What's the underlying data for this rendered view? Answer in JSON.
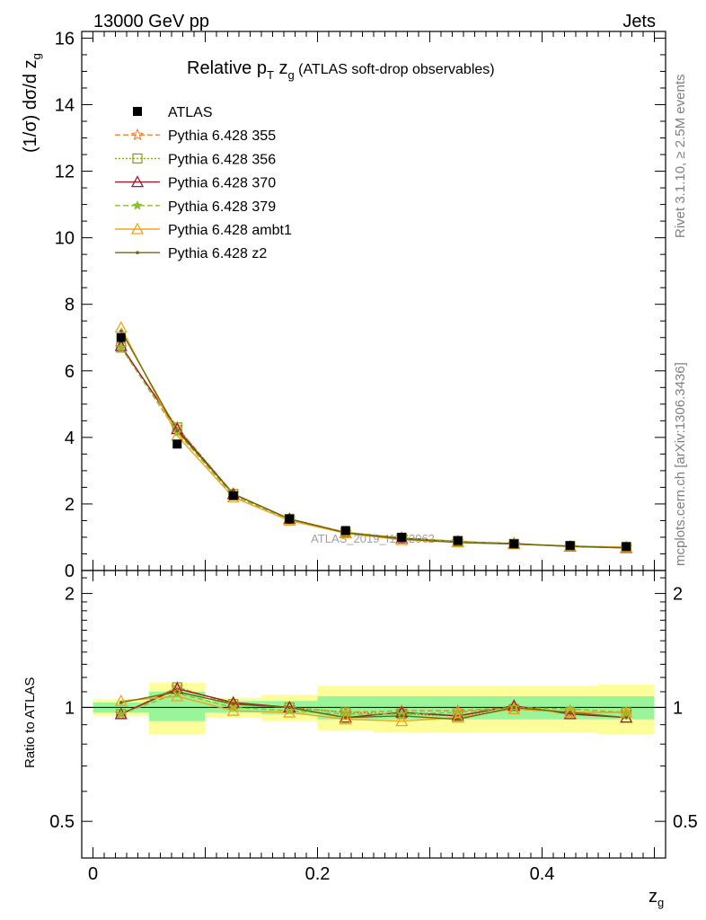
{
  "header": {
    "left": "13000 GeV pp",
    "right": "Jets"
  },
  "side_labels": {
    "rivet": "Rivet 3.1.10, ≥ 2.5M events",
    "mcplots": "mcplots.cern.ch [arXiv:1306.3436]"
  },
  "watermark": "ATLAS_2019_I1772062",
  "title": {
    "main": "Relative p",
    "sub1": "T",
    "mid": " z",
    "sub2": "g",
    "rest": " (ATLAS soft-drop observables)"
  },
  "ylabel_top": {
    "pre": "(1/σ) dσ/d z",
    "sub": "g"
  },
  "ylabel_bottom": "Ratio to ATLAS",
  "xlabel": {
    "main": "z",
    "sub": "g"
  },
  "chart_data": [
    {
      "type": "line",
      "panel": "main",
      "ylim": [
        0,
        16.2
      ],
      "xlim": [
        -0.01,
        0.51
      ],
      "y_ticks": [
        "0",
        "2",
        "4",
        "6",
        "8",
        "10",
        "12",
        "14",
        "16"
      ],
      "x": [
        0.025,
        0.075,
        0.125,
        0.175,
        0.225,
        0.275,
        0.325,
        0.375,
        0.425,
        0.475
      ],
      "data": {
        "name": "ATLAS",
        "values": [
          7.0,
          3.8,
          2.25,
          1.55,
          1.2,
          1.0,
          0.9,
          0.8,
          0.75,
          0.72
        ]
      },
      "series": [
        {
          "name": "Pythia 6.428 355",
          "color": "#f57f2a",
          "marker": "star",
          "dash": "6,3",
          "values": [
            6.7,
            4.3,
            2.3,
            1.55,
            1.15,
            0.98,
            0.88,
            0.8,
            0.73,
            0.7
          ]
        },
        {
          "name": "Pythia 6.428 356",
          "color": "#8aa31c",
          "marker": "square-open",
          "dash": "2,2",
          "values": [
            6.7,
            4.3,
            2.3,
            1.55,
            1.15,
            0.98,
            0.88,
            0.8,
            0.73,
            0.7
          ]
        },
        {
          "name": "Pythia 6.428 370",
          "color": "#9c1a2e",
          "marker": "triangle-open",
          "dash": "",
          "values": [
            6.75,
            4.25,
            2.3,
            1.55,
            1.13,
            0.97,
            0.86,
            0.81,
            0.72,
            0.68
          ]
        },
        {
          "name": "Pythia 6.428 379",
          "color": "#8cbf2a",
          "marker": "star-small",
          "dash": "6,3",
          "values": [
            6.7,
            4.15,
            2.25,
            1.52,
            1.15,
            0.96,
            0.87,
            0.8,
            0.74,
            0.7
          ]
        },
        {
          "name": "Pythia 6.428 ambt1",
          "color": "#f2a319",
          "marker": "triangle-open",
          "dash": "",
          "values": [
            7.3,
            4.05,
            2.2,
            1.5,
            1.12,
            0.92,
            0.85,
            0.79,
            0.73,
            0.7
          ]
        },
        {
          "name": "Pythia 6.428 z2",
          "color": "#6b6b0e",
          "marker": "dot",
          "dash": "",
          "values": [
            7.2,
            4.2,
            2.3,
            1.55,
            1.13,
            0.95,
            0.84,
            0.8,
            0.73,
            0.68
          ]
        }
      ]
    },
    {
      "type": "line",
      "panel": "ratio",
      "ylabel": "Ratio to ATLAS",
      "ylim": [
        0.4,
        2.3
      ],
      "log_y": true,
      "y_ticks": [
        "0.5",
        "1",
        "2"
      ],
      "x_ticks": [
        "0",
        "0.2",
        "0.4"
      ],
      "x": [
        0.025,
        0.075,
        0.125,
        0.175,
        0.225,
        0.275,
        0.325,
        0.375,
        0.425,
        0.475
      ],
      "bins": [
        [
          0.0,
          0.05
        ],
        [
          0.05,
          0.1
        ],
        [
          0.1,
          0.15
        ],
        [
          0.15,
          0.2
        ],
        [
          0.2,
          0.25
        ],
        [
          0.25,
          0.3
        ],
        [
          0.3,
          0.35
        ],
        [
          0.35,
          0.4
        ],
        [
          0.4,
          0.45
        ],
        [
          0.45,
          0.5
        ]
      ],
      "band_stat": [
        [
          0.97,
          1.03
        ],
        [
          0.92,
          1.1
        ],
        [
          0.97,
          1.04
        ],
        [
          0.96,
          1.04
        ],
        [
          0.93,
          1.07
        ],
        [
          0.93,
          1.07
        ],
        [
          0.93,
          1.07
        ],
        [
          0.93,
          1.07
        ],
        [
          0.93,
          1.07
        ],
        [
          0.93,
          1.07
        ]
      ],
      "band_total": [
        [
          0.95,
          1.05
        ],
        [
          0.85,
          1.16
        ],
        [
          0.94,
          1.06
        ],
        [
          0.92,
          1.08
        ],
        [
          0.87,
          1.14
        ],
        [
          0.86,
          1.14
        ],
        [
          0.86,
          1.14
        ],
        [
          0.86,
          1.14
        ],
        [
          0.86,
          1.14
        ],
        [
          0.85,
          1.15
        ]
      ],
      "series": [
        {
          "name": "Pythia 6.428 355",
          "values": [
            0.96,
            1.13,
            1.02,
            1.0,
            0.97,
            0.98,
            0.98,
            1.0,
            0.97,
            0.97
          ]
        },
        {
          "name": "Pythia 6.428 356",
          "values": [
            0.96,
            1.13,
            1.02,
            1.0,
            0.97,
            0.96,
            0.95,
            0.99,
            0.97,
            0.97
          ]
        },
        {
          "name": "Pythia 6.428 370",
          "values": [
            0.96,
            1.12,
            1.03,
            1.0,
            0.94,
            0.97,
            0.95,
            1.01,
            0.96,
            0.94
          ]
        },
        {
          "name": "Pythia 6.428 379",
          "values": [
            0.96,
            1.09,
            1.0,
            0.98,
            0.96,
            0.96,
            0.97,
            1.0,
            0.99,
            0.97
          ]
        },
        {
          "name": "Pythia 6.428 ambt1",
          "values": [
            1.04,
            1.07,
            0.98,
            0.97,
            0.93,
            0.92,
            0.94,
            0.99,
            0.97,
            0.97
          ]
        },
        {
          "name": "Pythia 6.428 z2",
          "values": [
            1.03,
            1.1,
            1.02,
            1.0,
            0.94,
            0.95,
            0.93,
            1.0,
            0.97,
            0.94
          ]
        }
      ]
    }
  ]
}
